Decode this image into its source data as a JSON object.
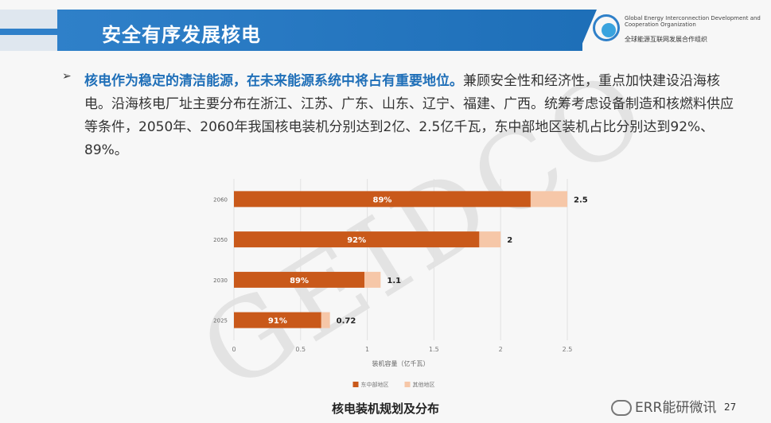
{
  "header": {
    "title": "安全有序发展核电"
  },
  "logo": {
    "org_en": "Global Energy Interconnection Development and Cooperation Organization",
    "org_cn": "全球能源互联网发展合作组织"
  },
  "bullet": {
    "highlight": "核电作为稳定的清洁能源，在未来能源系统中将占有重要地位。",
    "text": "兼顾安全性和经济性，重点加快建设沿海核电。沿海核电厂址主要分布在浙江、江苏、广东、山东、辽宁、福建、广西。统筹考虑设备制造和核燃料供应等条件，2050年、2060年我国核电装机分别达到2亿、2.5亿千瓦，东中部地区装机占比分别达到92%、89%。"
  },
  "watermark": "GEIDCO",
  "chart_data": {
    "type": "bar",
    "orientation": "horizontal",
    "stacked": true,
    "categories": [
      "2060",
      "2050",
      "2030",
      "2025"
    ],
    "totals": [
      2.5,
      2,
      1.1,
      0.72
    ],
    "total_labels": [
      "2.5",
      "2",
      "1.1",
      "0.72"
    ],
    "share_labels": [
      "89%",
      "92%",
      "89%",
      "91%"
    ],
    "series": [
      {
        "name": "东中部地区",
        "values": [
          2.225,
          1.84,
          0.979,
          0.655
        ],
        "color": "#c9591a"
      },
      {
        "name": "其他地区",
        "values": [
          0.275,
          0.16,
          0.121,
          0.065
        ],
        "color": "#f6c7a8"
      }
    ],
    "xlabel": "装机容量（亿千瓦）",
    "xlim": [
      0,
      2.5
    ],
    "xticks": [
      "0",
      "0.5",
      "1",
      "1.5",
      "2",
      "2.5"
    ],
    "legend": "bottom",
    "grid": true
  },
  "caption": "核电装机规划及分布",
  "page_number": "27",
  "wechat": "ERR能研微讯"
}
